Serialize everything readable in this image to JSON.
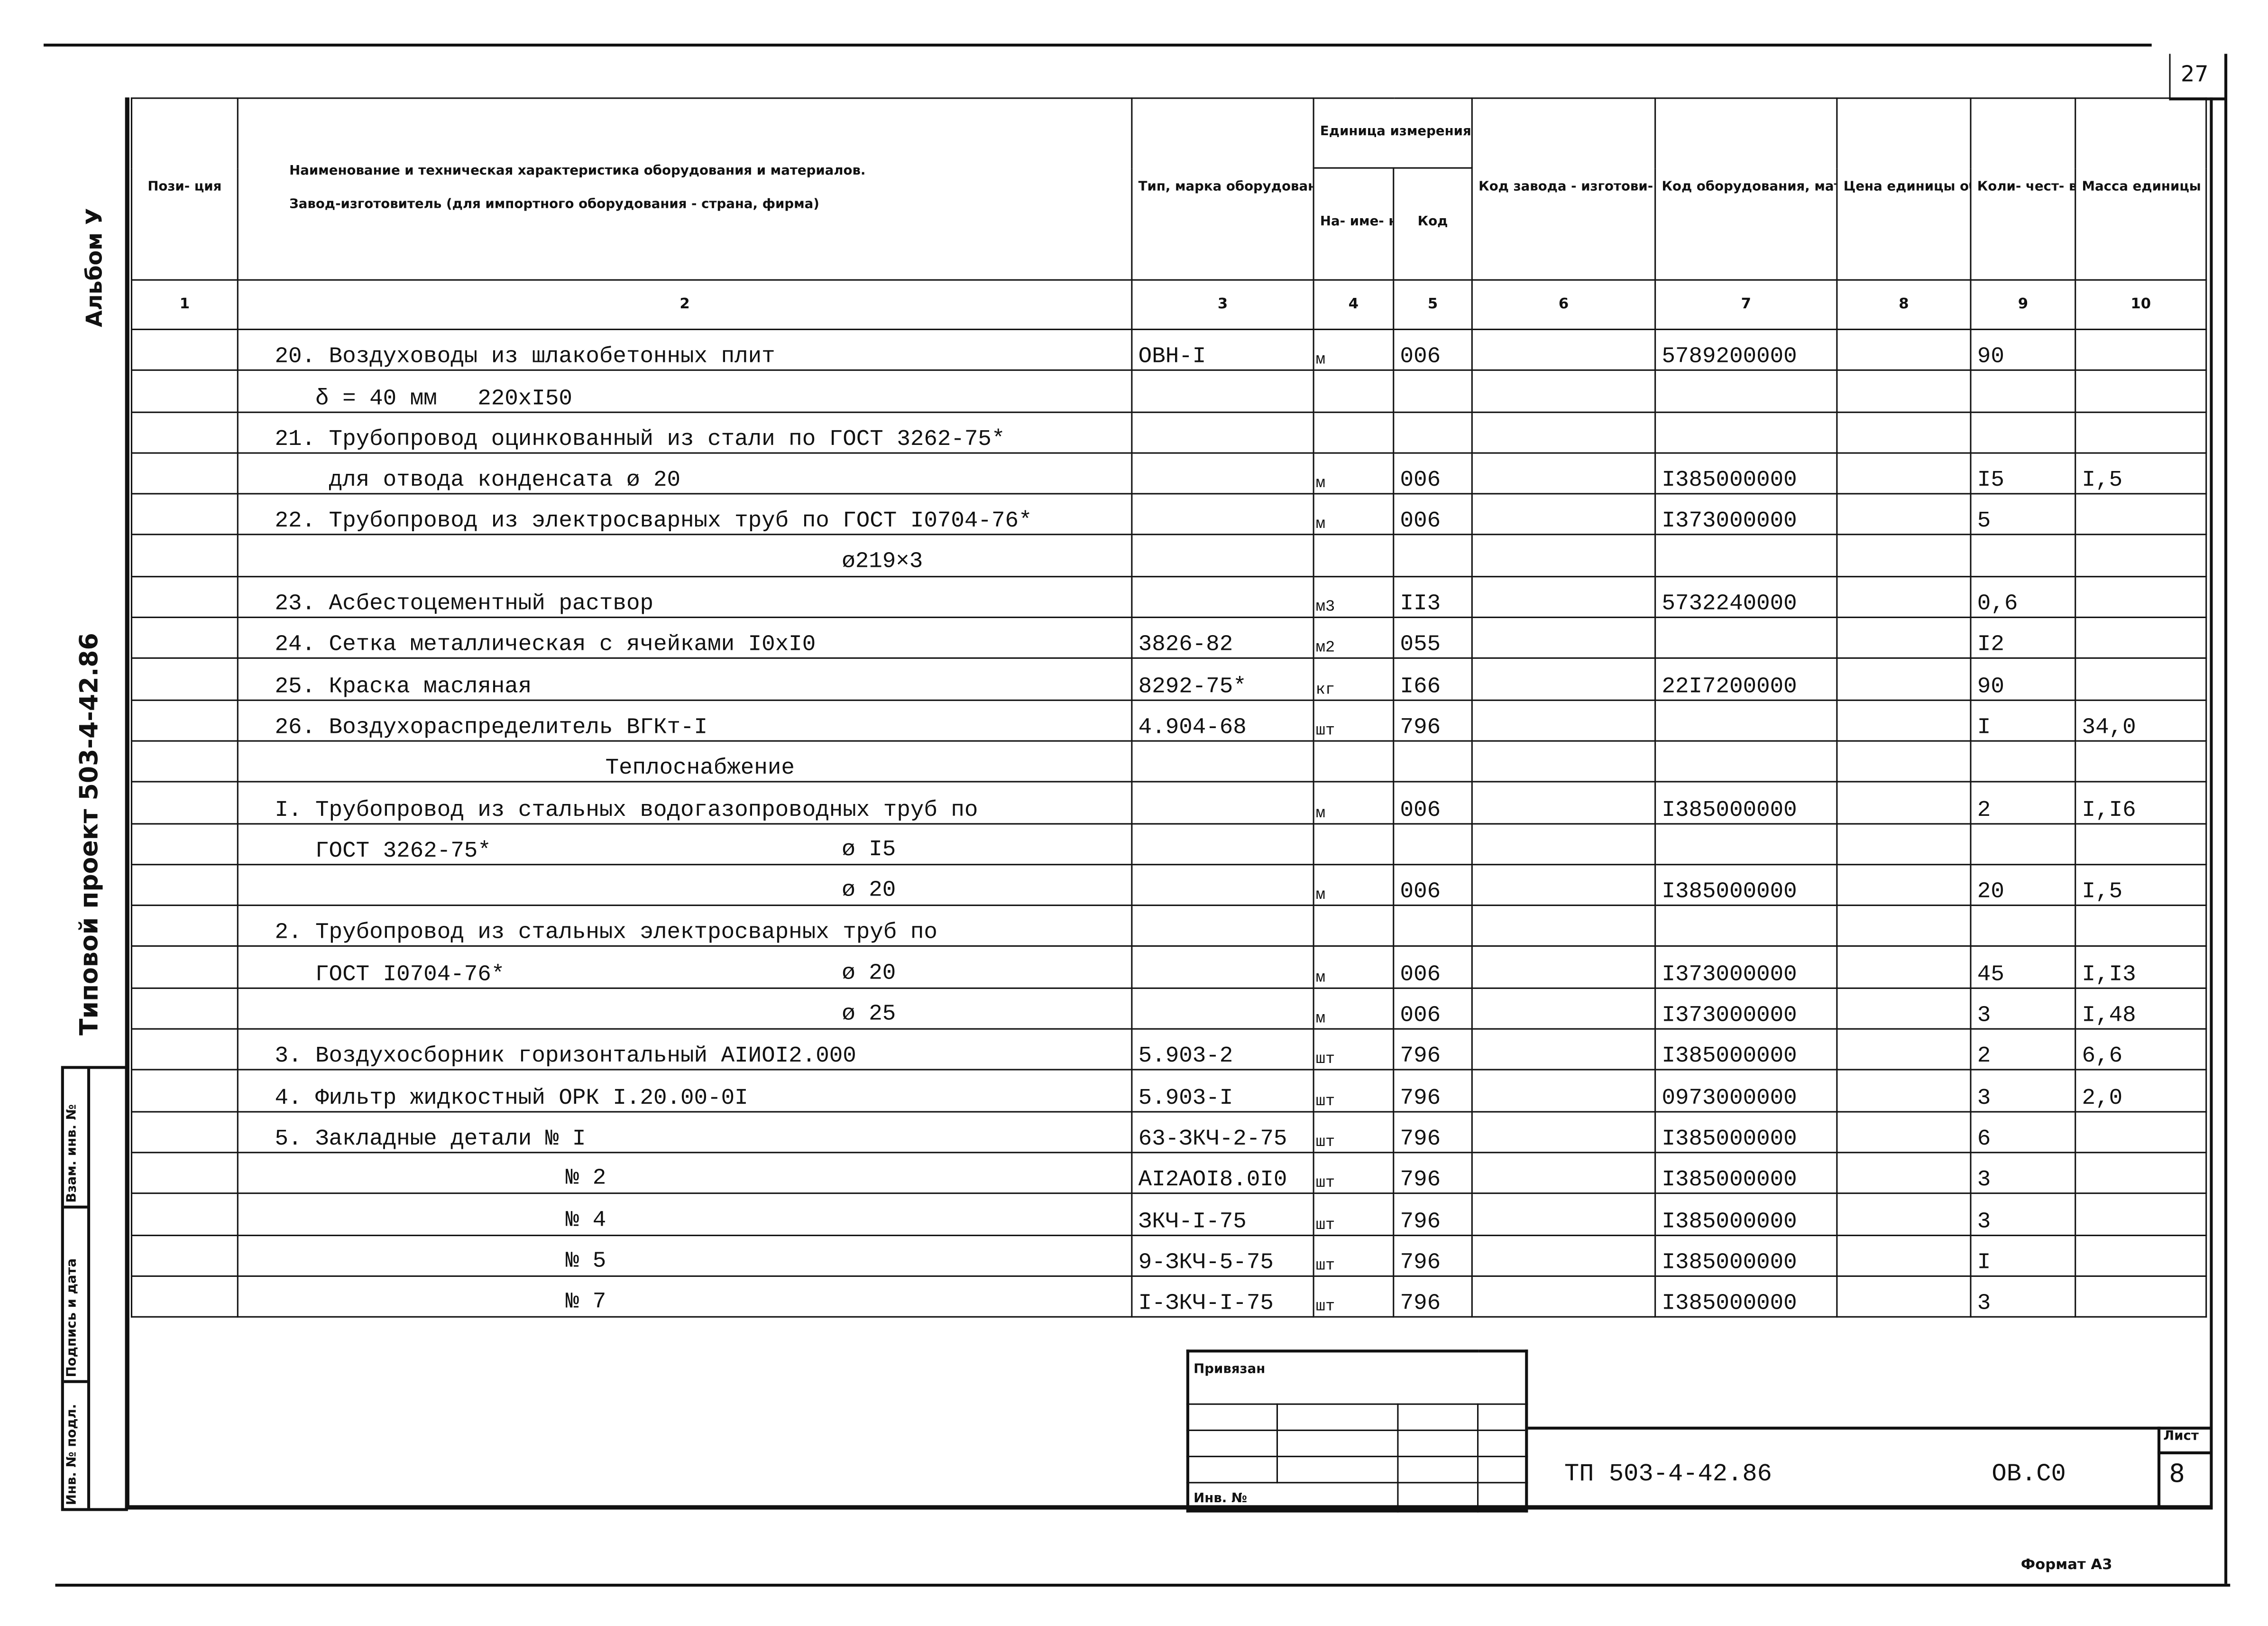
{
  "page_number": "27",
  "side": {
    "album": "Альбом У",
    "project": "Типовой проект 503-4-42.86",
    "stamp_labels": [
      "Взам. инв. №",
      "Подпись и дата",
      "Инв. № подл."
    ]
  },
  "header": {
    "position": "Пози- ция",
    "name_line1": "Наименование и техническая характеристика оборудования и материалов.",
    "name_line2": "Завод-изготовитель (для импортного оборудования - страна, фирма)",
    "type": "Тип, марка оборудования. Обозначение до- кумента и номер опросного листа",
    "unit": "Единица измерения",
    "unit_name": "На- име- нова- ние",
    "unit_code": "Код",
    "factory_code": "Код завода - изготови- теля",
    "equipment_code": "Код оборудования, материала",
    "price": "Цена единицы оборудо- вания, тыс. руб.",
    "quantity": "Коли- чест- во",
    "mass": "Масса единицы оборудо- вания, кг"
  },
  "column_numbers": [
    "1",
    "2",
    "3",
    "4",
    "5",
    "6",
    "7",
    "8",
    "9",
    "10"
  ],
  "rows": [
    {
      "text": "20. Воздуховоды из шлакобетонных плит",
      "type": "ОВН-I",
      "unit": "м",
      "code": "006",
      "mat": "5789200000",
      "qty": "90",
      "mass": ""
    },
    {
      "text": "   δ = 40 мм   220xI50",
      "type": "",
      "unit": "",
      "code": "",
      "mat": "",
      "qty": "",
      "mass": ""
    },
    {
      "text": "21. Трубопровод оцинкованный из стали по ГОСТ 3262-75*",
      "type": "",
      "unit": "",
      "code": "",
      "mat": "",
      "qty": "",
      "mass": ""
    },
    {
      "text": "    для отвода конденсата ø 20",
      "type": "",
      "unit": "м",
      "code": "006",
      "mat": "I385000000",
      "qty": "I5",
      "mass": "I,5"
    },
    {
      "text": "22. Трубопровод из электросварных труб по ГОСТ I0704-76*",
      "type": "",
      "unit": "м",
      "code": "006",
      "mat": "I373000000",
      "qty": "5",
      "mass": ""
    },
    {
      "text": "",
      "right": "ø219×3",
      "type": "",
      "unit": "",
      "code": "",
      "mat": "",
      "qty": "",
      "mass": ""
    },
    {
      "text": "23. Асбестоцементный раствор",
      "type": "",
      "unit": "м3",
      "code": "II3",
      "mat": "5732240000",
      "qty": "0,6",
      "mass": ""
    },
    {
      "text": "24. Сетка металлическая с ячейками I0xI0",
      "type": "3826-82",
      "unit": "м2",
      "code": "055",
      "mat": "",
      "qty": "I2",
      "mass": ""
    },
    {
      "text": "25. Краска масляная",
      "type": "8292-75*",
      "unit": "кг",
      "code": "I66",
      "mat": "22I7200000",
      "qty": "90",
      "mass": ""
    },
    {
      "text": "26. Воздухораспределитель ВГКт-I",
      "type": "4.904-68",
      "unit": "шт",
      "code": "796",
      "mat": "",
      "qty": "I",
      "mass": "34,0"
    },
    {
      "section": "Теплоснабжение",
      "type": "",
      "unit": "",
      "code": "",
      "mat": "",
      "qty": "",
      "mass": ""
    },
    {
      "text": "I. Трубопровод из стальных водогазопроводных труб по",
      "type": "",
      "unit": "м",
      "code": "006",
      "mat": "I385000000",
      "qty": "2",
      "mass": "I,I6"
    },
    {
      "text": "   ГОСТ 3262-75*",
      "right": "ø I5",
      "type": "",
      "unit": "",
      "code": "",
      "mat": "",
      "qty": "",
      "mass": ""
    },
    {
      "text": "",
      "right": "ø 20",
      "type": "",
      "unit": "м",
      "code": "006",
      "mat": "I385000000",
      "qty": "20",
      "mass": "I,5"
    },
    {
      "text": "2. Трубопровод из стальных электросварных труб по",
      "type": "",
      "unit": "",
      "code": "",
      "mat": "",
      "qty": "",
      "mass": ""
    },
    {
      "text": "   ГОСТ I0704-76*",
      "right": "ø 20",
      "type": "",
      "unit": "м",
      "code": "006",
      "mat": "I373000000",
      "qty": "45",
      "mass": "I,I3"
    },
    {
      "text": "",
      "right": "ø 25",
      "type": "",
      "unit": "м",
      "code": "006",
      "mat": "I373000000",
      "qty": "3",
      "mass": "I,48"
    },
    {
      "text": "3. Воздухосборник горизонтальный АIИОI2.000",
      "type": "5.903-2",
      "unit": "шт",
      "code": "796",
      "mat": "I385000000",
      "qty": "2",
      "mass": "6,6"
    },
    {
      "text": "4. Фильтр жидкостный ОРК I.20.00-0I",
      "type": "5.903-I",
      "unit": "шт",
      "code": "796",
      "mat": "0973000000",
      "qty": "3",
      "mass": "2,0"
    },
    {
      "text": "5. Закладные детали № I",
      "type": "63-ЗКЧ-2-75",
      "unit": "шт",
      "code": "796",
      "mat": "I385000000",
      "qty": "6",
      "mass": ""
    },
    {
      "text": "",
      "right2": "№ 2",
      "type": "AI2AOI8.0I0",
      "unit": "шт",
      "code": "796",
      "mat": "I385000000",
      "qty": "3",
      "mass": ""
    },
    {
      "text": "",
      "right2": "№ 4",
      "type": "ЗКЧ-I-75",
      "unit": "шт",
      "code": "796",
      "mat": "I385000000",
      "qty": "3",
      "mass": ""
    },
    {
      "text": "",
      "right2": "№ 5",
      "type": "9-ЗКЧ-5-75",
      "unit": "шт",
      "code": "796",
      "mat": "I385000000",
      "qty": "I",
      "mass": ""
    },
    {
      "text": "",
      "right2": "№ 7",
      "type": "I-ЗКЧ-I-75",
      "unit": "шт",
      "code": "796",
      "mat": "I385000000",
      "qty": "3",
      "mass": ""
    }
  ],
  "title_block": {
    "linked": "Привязан",
    "inv_no": "Инв. №",
    "designation": "ТП 503-4-42.86",
    "code": "ОВ.С0",
    "sheet_label": "Лист",
    "sheet": "8"
  },
  "format": "Формат А3"
}
